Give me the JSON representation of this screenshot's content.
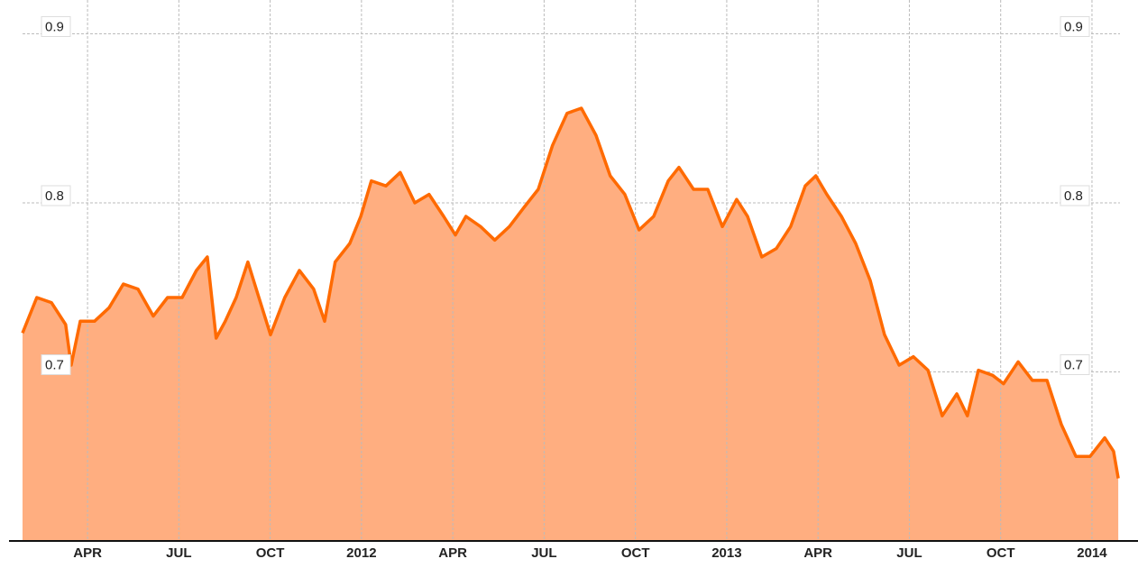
{
  "chart_data": {
    "type": "area",
    "color": "#ff6a00",
    "fill_color": "#ffae80",
    "grid": true,
    "xlim": [
      2011.035,
      2014.126
    ],
    "ylim": [
      0.6,
      0.92
    ],
    "xticks": [
      {
        "value": 2011.25,
        "label": "APR"
      },
      {
        "value": 2011.5,
        "label": "JUL"
      },
      {
        "value": 2011.75,
        "label": "OCT"
      },
      2012,
      {
        "value": 2012.25,
        "label": "APR"
      },
      {
        "value": 2012.5,
        "label": "JUL"
      },
      {
        "value": 2012.75,
        "label": "OCT"
      },
      2013,
      {
        "value": 2013.25,
        "label": "APR"
      },
      {
        "value": 2013.5,
        "label": "JUL"
      },
      {
        "value": 2013.75,
        "label": "OCT"
      },
      2014
    ],
    "yticks": [
      0.7,
      0.8,
      0.9
    ],
    "x": [
      2011.072,
      2011.111,
      2011.151,
      2011.19,
      2011.205,
      2011.23,
      2011.269,
      2011.309,
      2011.348,
      2011.388,
      2011.43,
      2011.469,
      2011.509,
      2011.548,
      2011.578,
      2011.602,
      2011.627,
      2011.657,
      2011.689,
      2011.719,
      2011.751,
      2011.79,
      2011.83,
      2011.869,
      2011.899,
      2011.928,
      2011.968,
      2011.998,
      2012.027,
      2012.067,
      2012.106,
      2012.146,
      2012.185,
      2012.225,
      2012.257,
      2012.286,
      2012.326,
      2012.365,
      2012.405,
      2012.444,
      2012.484,
      2012.523,
      2012.563,
      2012.602,
      2012.642,
      2012.681,
      2012.721,
      2012.76,
      2012.8,
      2012.84,
      2012.869,
      2012.909,
      2012.948,
      2012.988,
      2013.027,
      2013.057,
      2013.096,
      2013.136,
      2013.175,
      2013.215,
      2013.244,
      2013.274,
      2013.314,
      2013.353,
      2013.393,
      2013.432,
      2013.472,
      2013.511,
      2013.551,
      2013.59,
      2013.63,
      2013.659,
      2013.689,
      2013.728,
      2013.758,
      2013.798,
      2013.837,
      2013.877,
      2013.916,
      2013.956,
      2013.995,
      2014.035,
      2014.059,
      2014.072
    ],
    "values": [
      0.723,
      0.744,
      0.741,
      0.728,
      0.704,
      0.73,
      0.73,
      0.738,
      0.752,
      0.749,
      0.733,
      0.744,
      0.744,
      0.76,
      0.768,
      0.72,
      0.73,
      0.744,
      0.765,
      0.744,
      0.722,
      0.744,
      0.76,
      0.749,
      0.73,
      0.765,
      0.776,
      0.792,
      0.813,
      0.81,
      0.818,
      0.8,
      0.805,
      0.792,
      0.781,
      0.792,
      0.786,
      0.778,
      0.786,
      0.797,
      0.808,
      0.834,
      0.853,
      0.856,
      0.84,
      0.816,
      0.805,
      0.784,
      0.792,
      0.813,
      0.821,
      0.808,
      0.808,
      0.786,
      0.802,
      0.792,
      0.768,
      0.773,
      0.786,
      0.81,
      0.816,
      0.805,
      0.792,
      0.776,
      0.754,
      0.722,
      0.704,
      0.709,
      0.701,
      0.674,
      0.687,
      0.674,
      0.701,
      0.698,
      0.693,
      0.706,
      0.695,
      0.695,
      0.669,
      0.65,
      0.65,
      0.661,
      0.653,
      0.637
    ]
  }
}
